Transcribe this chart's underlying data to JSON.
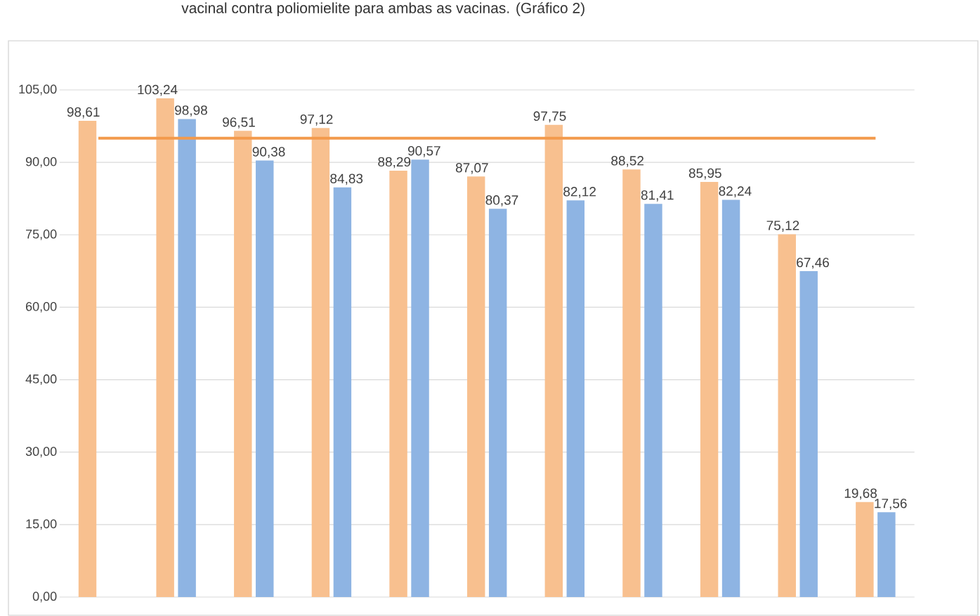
{
  "chart_data": {
    "type": "bar",
    "annotations": [
      "vacinal contra poliomielite para ambas as vacinas. (Gráfico 2)"
    ],
    "categories": [
      null,
      null,
      null,
      null,
      null,
      null,
      null,
      null,
      null,
      null,
      null
    ],
    "series": [
      {
        "color": "#f8c08f",
        "values": [
          98.61,
          103.24,
          96.51,
          97.12,
          88.29,
          87.07,
          97.75,
          88.52,
          85.95,
          75.12,
          19.68
        ],
        "value_labels": [
          "98,61",
          "103,24",
          "96,51",
          "97,12",
          "88,29",
          "87,07",
          "97,75",
          "88,52",
          "85,95",
          "75,12",
          "19,68"
        ]
      },
      {
        "color": "#8eb4e3",
        "values": [
          null,
          98.98,
          90.38,
          84.83,
          90.57,
          80.37,
          82.12,
          81.41,
          82.24,
          67.46,
          17.56
        ],
        "value_labels": [
          null,
          "98,98",
          "90,38",
          "84,83",
          "90,57",
          "80,37",
          "82,12",
          "81,41",
          "82,24",
          "67,46",
          "17,56"
        ]
      }
    ],
    "ylim": [
      0,
      105
    ],
    "yticks": [
      {
        "value": 0,
        "label": "0,00"
      },
      {
        "value": 15,
        "label": "15,00"
      },
      {
        "value": 30,
        "label": "30,00"
      },
      {
        "value": 45,
        "label": "45,00"
      },
      {
        "value": 60,
        "label": "60,00"
      },
      {
        "value": 75,
        "label": "75,00"
      },
      {
        "value": 90,
        "label": "90,00"
      },
      {
        "value": 105,
        "label": "105,00"
      }
    ],
    "grid": "y",
    "tick_labels": "y",
    "ref_lines": [
      {
        "axis": "y",
        "value": 95,
        "color": "#f39a4c"
      }
    ]
  }
}
